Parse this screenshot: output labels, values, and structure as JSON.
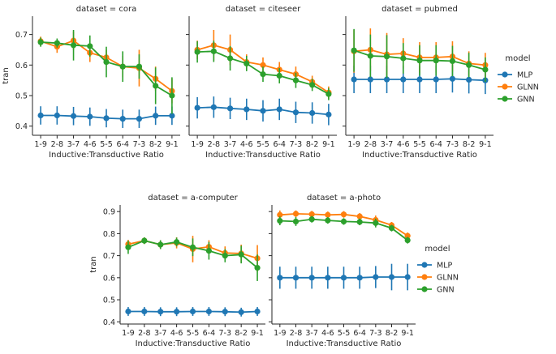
{
  "colors": {
    "MLP": "#1f77b4",
    "GLNN": "#ff7f0e",
    "GNN": "#2ca02c"
  },
  "legend_title": "model",
  "chart_data": [
    {
      "type": "line",
      "title": "dataset = cora",
      "xlabel": "Inductive:Transductive Ratio",
      "ylabel": "tran",
      "categories": [
        "1-9",
        "2-8",
        "3-7",
        "4-6",
        "5-5",
        "6-4",
        "7-3",
        "8-2",
        "9-1"
      ],
      "ylim": [
        0.37,
        0.76
      ],
      "yticks": [
        0.4,
        0.5,
        0.6,
        0.7
      ],
      "series": [
        {
          "name": "MLP",
          "values": [
            0.435,
            0.435,
            0.433,
            0.431,
            0.426,
            0.424,
            0.424,
            0.434,
            0.434
          ],
          "err": [
            0.03,
            0.03,
            0.03,
            0.03,
            0.03,
            0.03,
            0.03,
            0.03,
            0.03
          ]
        },
        {
          "name": "GLNN",
          "values": [
            0.678,
            0.66,
            0.68,
            0.64,
            0.625,
            0.595,
            0.59,
            0.555,
            0.515
          ],
          "err": [
            0.015,
            0.02,
            0.03,
            0.03,
            0.025,
            0.035,
            0.06,
            0.04,
            0.04
          ]
        },
        {
          "name": "GNN",
          "values": [
            0.675,
            0.672,
            0.665,
            0.662,
            0.61,
            0.595,
            0.595,
            0.532,
            0.5
          ],
          "err": [
            0.015,
            0.015,
            0.05,
            0.035,
            0.05,
            0.05,
            0.04,
            0.06,
            0.06
          ]
        }
      ]
    },
    {
      "type": "line",
      "title": "dataset = citeseer",
      "xlabel": "Inductive:Transductive Ratio",
      "ylabel": "",
      "categories": [
        "1-9",
        "2-8",
        "3-7",
        "4-6",
        "5-5",
        "6-4",
        "7-3",
        "8-2",
        "9-1"
      ],
      "ylim": [
        0.37,
        0.76
      ],
      "series": [
        {
          "name": "MLP",
          "values": [
            0.46,
            0.462,
            0.458,
            0.455,
            0.45,
            0.455,
            0.445,
            0.443,
            0.438
          ],
          "err": [
            0.035,
            0.035,
            0.035,
            0.035,
            0.035,
            0.035,
            0.035,
            0.035,
            0.035
          ]
        },
        {
          "name": "GLNN",
          "values": [
            0.65,
            0.665,
            0.65,
            0.61,
            0.6,
            0.585,
            0.57,
            0.545,
            0.51
          ],
          "err": [
            0.03,
            0.05,
            0.05,
            0.025,
            0.025,
            0.025,
            0.025,
            0.02,
            0.02
          ]
        },
        {
          "name": "GNN",
          "values": [
            0.643,
            0.645,
            0.622,
            0.605,
            0.57,
            0.565,
            0.55,
            0.535,
            0.505
          ],
          "err": [
            0.035,
            0.035,
            0.04,
            0.025,
            0.025,
            0.025,
            0.025,
            0.02,
            0.02
          ]
        }
      ]
    },
    {
      "type": "line",
      "title": "dataset = pubmed",
      "xlabel": "Inductive:Transductive Ratio",
      "ylabel": "",
      "categories": [
        "1-9",
        "2-8",
        "3-7",
        "4-6",
        "5-5",
        "6-4",
        "7-3",
        "8-2",
        "9-1"
      ],
      "ylim": [
        0.37,
        0.76
      ],
      "series": [
        {
          "name": "MLP",
          "values": [
            0.553,
            0.553,
            0.553,
            0.553,
            0.553,
            0.553,
            0.555,
            0.552,
            0.55
          ],
          "err": [
            0.045,
            0.045,
            0.045,
            0.045,
            0.045,
            0.045,
            0.045,
            0.045,
            0.045
          ]
        },
        {
          "name": "GLNN",
          "values": [
            0.645,
            0.65,
            0.635,
            0.638,
            0.625,
            0.625,
            0.628,
            0.605,
            0.6
          ],
          "err": [
            0.07,
            0.07,
            0.07,
            0.05,
            0.05,
            0.05,
            0.05,
            0.04,
            0.04
          ]
        },
        {
          "name": "GNN",
          "values": [
            0.648,
            0.63,
            0.628,
            0.622,
            0.615,
            0.615,
            0.613,
            0.6,
            0.585
          ],
          "err": [
            0.07,
            0.07,
            0.07,
            0.05,
            0.05,
            0.05,
            0.05,
            0.04,
            0.04
          ]
        }
      ]
    },
    {
      "type": "line",
      "title": "dataset = a-computer",
      "xlabel": "Inductive:Transductive Ratio",
      "ylabel": "tran",
      "categories": [
        "1-9",
        "2-8",
        "3-7",
        "4-6",
        "5-5",
        "6-4",
        "7-3",
        "8-2",
        "9-1"
      ],
      "ylim": [
        0.39,
        0.93
      ],
      "yticks": [
        0.4,
        0.5,
        0.6,
        0.7,
        0.8,
        0.9
      ],
      "series": [
        {
          "name": "MLP",
          "values": [
            0.447,
            0.447,
            0.446,
            0.446,
            0.447,
            0.447,
            0.446,
            0.444,
            0.447
          ],
          "err": [
            0.02,
            0.02,
            0.02,
            0.02,
            0.02,
            0.02,
            0.02,
            0.02,
            0.02
          ]
        },
        {
          "name": "GLNN",
          "values": [
            0.752,
            0.768,
            0.75,
            0.758,
            0.73,
            0.74,
            0.712,
            0.71,
            0.688
          ],
          "err": [
            0.02,
            0.015,
            0.02,
            0.025,
            0.06,
            0.03,
            0.03,
            0.04,
            0.06
          ]
        },
        {
          "name": "GNN",
          "values": [
            0.738,
            0.768,
            0.75,
            0.762,
            0.738,
            0.722,
            0.7,
            0.705,
            0.645
          ],
          "err": [
            0.03,
            0.015,
            0.02,
            0.02,
            0.04,
            0.04,
            0.03,
            0.04,
            0.06
          ]
        }
      ]
    },
    {
      "type": "line",
      "title": "dataset = a-photo",
      "xlabel": "Inductive:Transductive Ratio",
      "ylabel": "",
      "categories": [
        "1-9",
        "2-8",
        "3-7",
        "4-6",
        "5-5",
        "6-4",
        "7-3",
        "8-2",
        "9-1"
      ],
      "ylim": [
        0.39,
        0.93
      ],
      "series": [
        {
          "name": "MLP",
          "values": [
            0.6,
            0.6,
            0.6,
            0.6,
            0.6,
            0.6,
            0.603,
            0.603,
            0.603
          ],
          "err": [
            0.05,
            0.05,
            0.05,
            0.05,
            0.05,
            0.05,
            0.05,
            0.06,
            0.06
          ]
        },
        {
          "name": "GLNN",
          "values": [
            0.885,
            0.89,
            0.888,
            0.885,
            0.887,
            0.878,
            0.862,
            0.838,
            0.79
          ],
          "err": [
            0.02,
            0.015,
            0.015,
            0.015,
            0.015,
            0.015,
            0.02,
            0.015,
            0.015
          ]
        },
        {
          "name": "GNN",
          "values": [
            0.858,
            0.855,
            0.865,
            0.86,
            0.855,
            0.853,
            0.848,
            0.825,
            0.77
          ],
          "err": [
            0.02,
            0.02,
            0.015,
            0.015,
            0.015,
            0.015,
            0.02,
            0.015,
            0.015
          ]
        }
      ]
    }
  ],
  "legends": [
    {
      "title": "model",
      "entries": [
        "MLP",
        "GLNN",
        "GNN"
      ]
    },
    {
      "title": "model",
      "entries": [
        "MLP",
        "GLNN",
        "GNN"
      ]
    }
  ]
}
